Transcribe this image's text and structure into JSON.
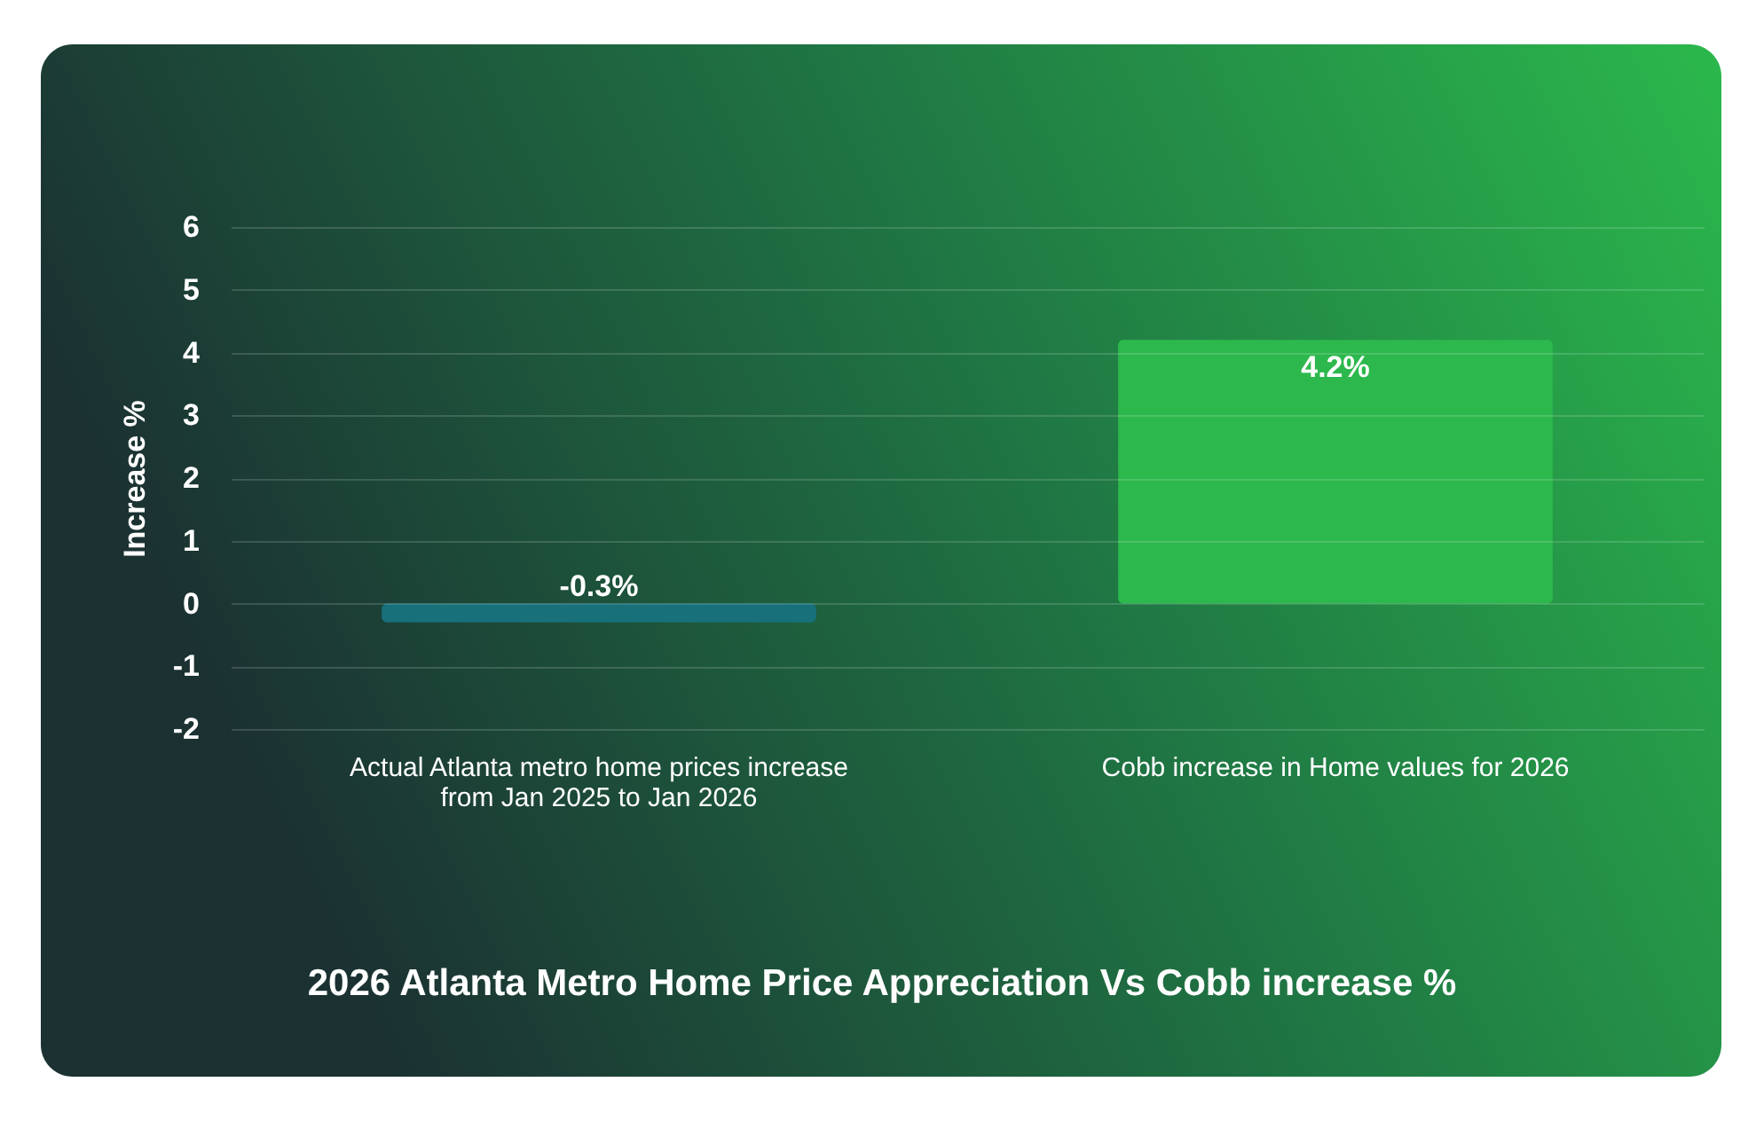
{
  "chart_data": {
    "type": "bar",
    "title": "2026 Atlanta Metro Home Price Appreciation Vs Cobb increase %",
    "ylabel": "Increase %",
    "categories": [
      "Actual Atlanta metro home prices increase\nfrom Jan 2025 to Jan 2026",
      "Cobb increase in Home values for 2026"
    ],
    "values": [
      -0.3,
      4.2
    ],
    "colors": [
      "#17707a",
      "#2db84d"
    ],
    "value_labels": [
      "-0.3%",
      "4.2%"
    ],
    "ylim": [
      -2,
      6
    ],
    "yticks": [
      -2,
      -1,
      0,
      1,
      2,
      3,
      4,
      5,
      6
    ],
    "grid": "y"
  }
}
